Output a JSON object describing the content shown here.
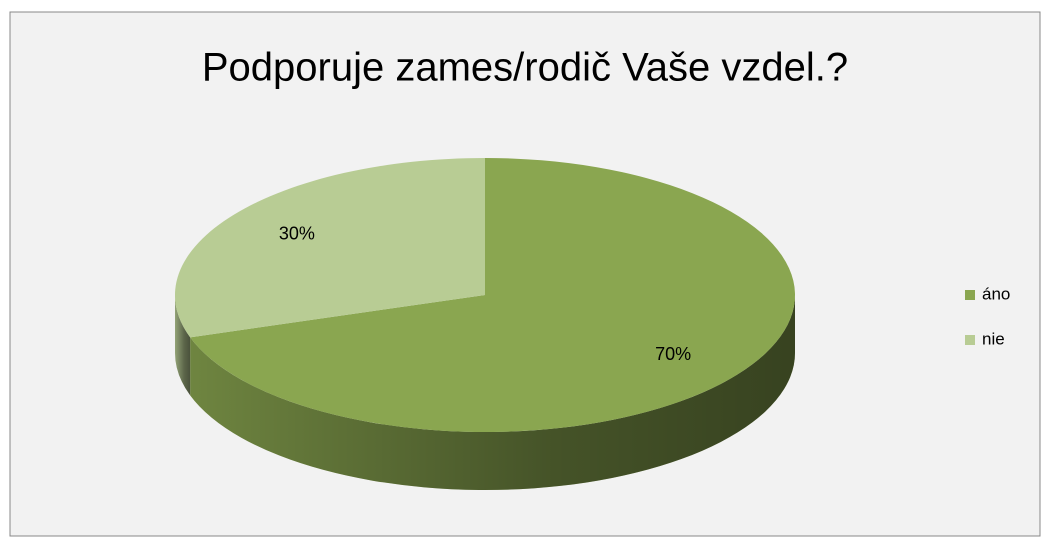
{
  "chart_data": {
    "type": "pie3d",
    "title": "Podporuje zames/rodič Vaše vzdel.?",
    "categories": [
      "áno",
      "nie"
    ],
    "values": [
      70,
      30
    ],
    "value_labels": [
      "70%",
      "30%"
    ],
    "colors": [
      "#8aa650",
      "#b8cc94"
    ],
    "legend": "right"
  }
}
